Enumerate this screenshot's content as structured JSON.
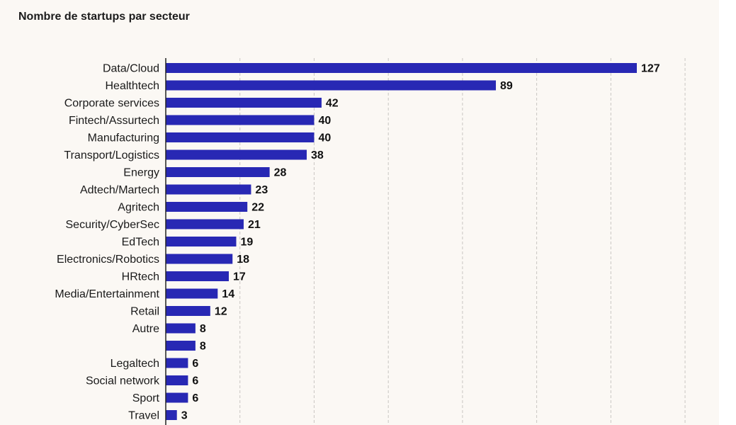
{
  "chart_data": {
    "type": "bar",
    "orientation": "horizontal",
    "title": "Nombre de startups par secteur",
    "categories": [
      "Data/Cloud",
      "Healthtech",
      "Corporate services",
      "Fintech/Assurtech",
      "Manufacturing",
      "Transport/Logistics",
      "Energy",
      "Adtech/Martech",
      "Agritech",
      "Security/CyberSec",
      "EdTech",
      "Electronics/Robotics",
      "HRtech",
      "Media/Entertainment",
      "Retail",
      "Autre",
      "",
      "Legaltech",
      "Social network",
      "Sport",
      "Travel"
    ],
    "values": [
      127,
      89,
      42,
      40,
      40,
      38,
      28,
      23,
      22,
      21,
      19,
      18,
      17,
      14,
      12,
      8,
      8,
      6,
      6,
      6,
      3
    ],
    "xlim": [
      0,
      140
    ],
    "grid": true,
    "bar_color": "#2828b4",
    "background": "#fbf8f4"
  }
}
